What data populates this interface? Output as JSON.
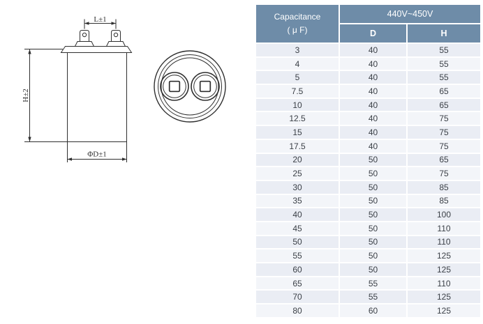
{
  "diagram": {
    "dim_top": "L±1",
    "dim_left": "H±2",
    "dim_bottom": "ΦD±1"
  },
  "table": {
    "capacitance_header_line1": "Capacitance",
    "capacitance_header_line2": "( μ F)",
    "voltage_header": "440V~450V",
    "columns": [
      "D",
      "H"
    ],
    "rows": [
      [
        "3",
        "40",
        "55"
      ],
      [
        "4",
        "40",
        "55"
      ],
      [
        "5",
        "40",
        "55"
      ],
      [
        "7.5",
        "40",
        "65"
      ],
      [
        "10",
        "40",
        "65"
      ],
      [
        "12.5",
        "40",
        "75"
      ],
      [
        "15",
        "40",
        "75"
      ],
      [
        "17.5",
        "40",
        "75"
      ],
      [
        "20",
        "50",
        "65"
      ],
      [
        "25",
        "50",
        "75"
      ],
      [
        "30",
        "50",
        "85"
      ],
      [
        "35",
        "50",
        "85"
      ],
      [
        "40",
        "50",
        "100"
      ],
      [
        "45",
        "50",
        "110"
      ],
      [
        "50",
        "50",
        "110"
      ],
      [
        "55",
        "50",
        "125"
      ],
      [
        "60",
        "50",
        "125"
      ],
      [
        "65",
        "55",
        "110"
      ],
      [
        "70",
        "55",
        "125"
      ],
      [
        "80",
        "60",
        "125"
      ]
    ],
    "colors": {
      "header_bg": "#6e8ca8",
      "header_text": "#ffffff",
      "row_odd": "#eaedf4",
      "row_even": "#f3f5f9",
      "cell_text": "#3a3f46",
      "line_color": "#2f2f2f"
    }
  }
}
